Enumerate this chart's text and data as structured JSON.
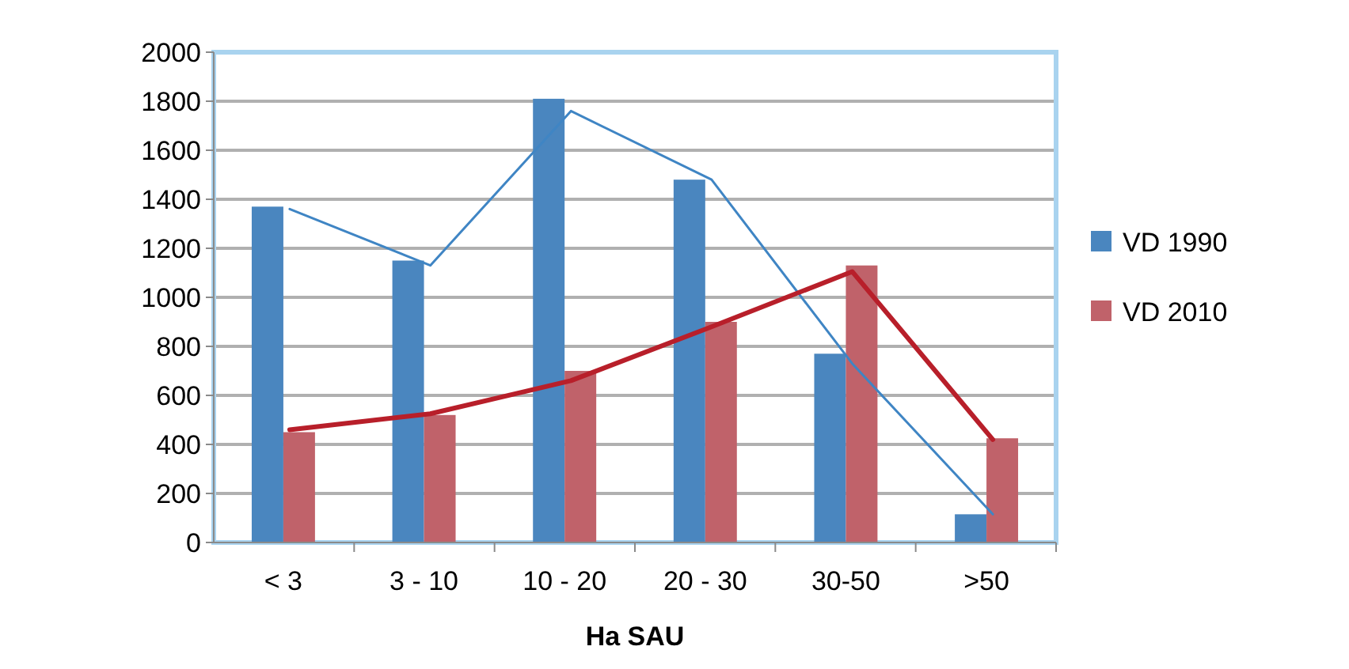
{
  "chart_data": {
    "type": "bar",
    "xlabel": "Ha SAU",
    "categories": [
      "< 3",
      "3 - 10",
      "10 - 20",
      "20 - 30",
      "30-50",
      ">50"
    ],
    "series": [
      {
        "name": "VD 1990",
        "color": "#4a86bf",
        "values": [
          1370,
          1150,
          1810,
          1480,
          770,
          115
        ]
      },
      {
        "name": "VD 2010",
        "color": "#c0626a",
        "values": [
          450,
          520,
          700,
          900,
          1130,
          425
        ]
      },
      {
        "type": "line",
        "color": "#3f85c4",
        "values": [
          1360,
          1130,
          1760,
          1480,
          730,
          115
        ]
      },
      {
        "type": "line",
        "color": "#b81f2a",
        "values": [
          460,
          525,
          660,
          880,
          1105,
          420
        ]
      }
    ],
    "ylim": [
      0,
      2000
    ],
    "yticks": [
      0,
      200,
      400,
      600,
      800,
      1000,
      1200,
      1400,
      1600,
      1800,
      2000
    ],
    "grid": "y",
    "legend": "right"
  }
}
